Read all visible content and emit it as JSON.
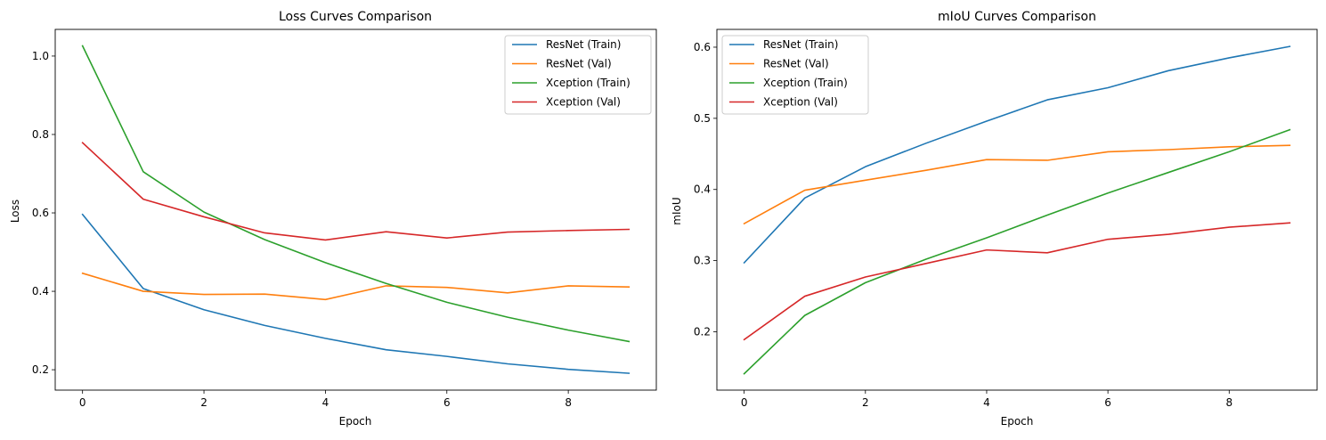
{
  "colors": {
    "resnet_train": "#1f77b4",
    "resnet_val": "#ff7f0e",
    "xception_train": "#2ca02c",
    "xception_val": "#d62728"
  },
  "chart_data": [
    {
      "type": "line",
      "title": "Loss Curves Comparison",
      "xlabel": "Epoch",
      "ylabel": "Loss",
      "xlim": [
        -0.45,
        9.45
      ],
      "ylim": [
        0.148,
        1.068
      ],
      "xticks": [
        0,
        2,
        4,
        6,
        8
      ],
      "yticks": [
        0.2,
        0.4,
        0.6,
        0.8,
        1.0
      ],
      "ytick_labels": [
        "0.2",
        "0.4",
        "0.6",
        "0.8",
        "1.0"
      ],
      "legend_position": "upper right",
      "grid": false,
      "x": [
        0,
        1,
        2,
        3,
        4,
        5,
        6,
        7,
        8,
        9
      ],
      "series": [
        {
          "name": "ResNet (Train)",
          "color": "#1f77b4",
          "values": [
            0.596,
            0.407,
            0.353,
            0.313,
            0.28,
            0.251,
            0.234,
            0.215,
            0.201,
            0.191
          ]
        },
        {
          "name": "ResNet (Val)",
          "color": "#ff7f0e",
          "values": [
            0.446,
            0.4,
            0.392,
            0.393,
            0.379,
            0.414,
            0.41,
            0.396,
            0.414,
            0.411
          ]
        },
        {
          "name": "Xception (Train)",
          "color": "#2ca02c",
          "values": [
            1.026,
            0.705,
            0.602,
            0.532,
            0.473,
            0.42,
            0.372,
            0.334,
            0.301,
            0.272
          ]
        },
        {
          "name": "Xception (Val)",
          "color": "#d62728",
          "values": [
            0.779,
            0.635,
            0.59,
            0.549,
            0.531,
            0.552,
            0.536,
            0.551,
            0.555,
            0.558
          ]
        }
      ]
    },
    {
      "type": "line",
      "title": "mIoU Curves Comparison",
      "xlabel": "Epoch",
      "ylabel": "mIoU",
      "xlim": [
        -0.45,
        9.45
      ],
      "ylim": [
        0.118,
        0.625
      ],
      "xticks": [
        0,
        2,
        4,
        6,
        8
      ],
      "yticks": [
        0.2,
        0.3,
        0.4,
        0.5,
        0.6
      ],
      "ytick_labels": [
        "0.2",
        "0.3",
        "0.4",
        "0.5",
        "0.6"
      ],
      "legend_position": "upper left",
      "grid": false,
      "x": [
        0,
        1,
        2,
        3,
        4,
        5,
        6,
        7,
        8,
        9
      ],
      "series": [
        {
          "name": "ResNet (Train)",
          "color": "#1f77b4",
          "values": [
            0.297,
            0.388,
            0.432,
            0.465,
            0.496,
            0.526,
            0.543,
            0.567,
            0.585,
            0.601
          ]
        },
        {
          "name": "ResNet (Val)",
          "color": "#ff7f0e",
          "values": [
            0.352,
            0.399,
            0.413,
            0.427,
            0.442,
            0.441,
            0.453,
            0.456,
            0.46,
            0.462
          ]
        },
        {
          "name": "Xception (Train)",
          "color": "#2ca02c",
          "values": [
            0.141,
            0.223,
            0.269,
            0.302,
            0.332,
            0.364,
            0.395,
            0.424,
            0.453,
            0.484
          ]
        },
        {
          "name": "Xception (Val)",
          "color": "#d62728",
          "values": [
            0.189,
            0.25,
            0.277,
            0.296,
            0.315,
            0.311,
            0.33,
            0.337,
            0.347,
            0.353
          ]
        }
      ]
    }
  ]
}
